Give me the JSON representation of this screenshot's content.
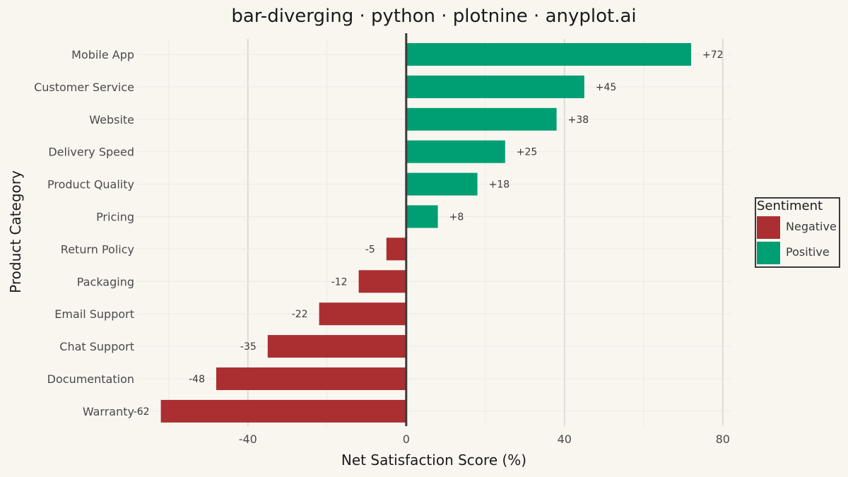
{
  "chart_data": {
    "type": "bar",
    "orientation": "horizontal",
    "title": "bar-diverging · python · plotnine · anyplot.ai",
    "xlabel": "Net Satisfaction Score (%)",
    "ylabel": "Product Category",
    "xlim": [
      -68,
      82
    ],
    "x_ticks": [
      -40,
      0,
      40,
      80
    ],
    "x_tick_labels": [
      "-40",
      "0",
      "40",
      "80"
    ],
    "grid": true,
    "categories": [
      "Mobile App",
      "Customer Service",
      "Website",
      "Delivery Speed",
      "Product Quality",
      "Pricing",
      "Return Policy",
      "Packaging",
      "Email Support",
      "Chat Support",
      "Documentation",
      "Warranty"
    ],
    "values": [
      72,
      45,
      38,
      25,
      18,
      8,
      -5,
      -12,
      -22,
      -35,
      -48,
      -62
    ],
    "value_labels": [
      "+72",
      "+45",
      "+38",
      "+25",
      "+18",
      "+8",
      "-5",
      "-12",
      "-22",
      "-35",
      "-48",
      "-62"
    ],
    "sentiment": [
      "Positive",
      "Positive",
      "Positive",
      "Positive",
      "Positive",
      "Positive",
      "Negative",
      "Negative",
      "Negative",
      "Negative",
      "Negative",
      "Negative"
    ],
    "legend": {
      "title": "Sentiment",
      "position": "right",
      "entries": [
        {
          "label": "Negative",
          "color": "#ab2e31"
        },
        {
          "label": "Positive",
          "color": "#009e73"
        }
      ]
    },
    "colors": {
      "Negative": "#ab2e31",
      "Positive": "#009e73",
      "background": "#f9f6f0",
      "zero_line": "#3a3a3a"
    }
  }
}
